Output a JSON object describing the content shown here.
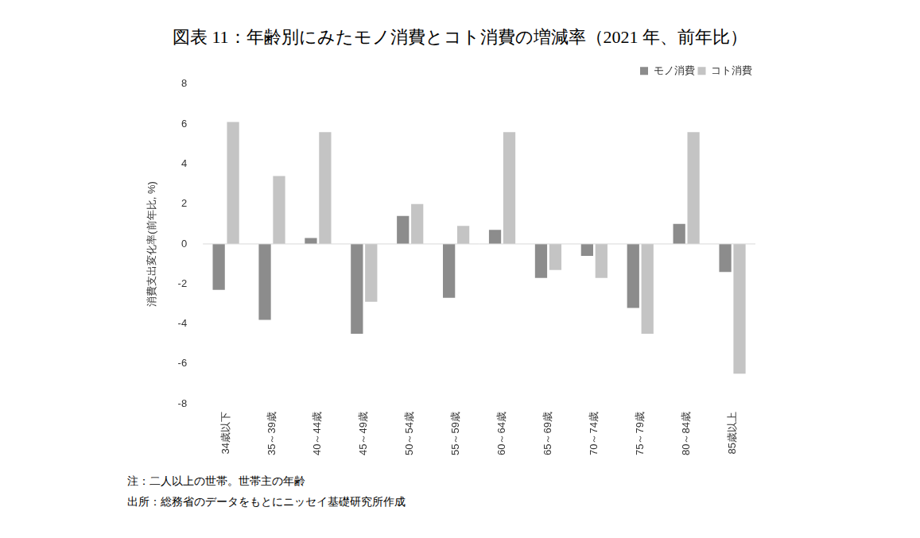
{
  "chart_data": {
    "type": "bar",
    "title": "図表 11：年齢別にみたモノ消費とコト消費の増減率（2021 年、前年比）",
    "y_label": "消費支出変化率(前年比, %)",
    "categories": [
      "34歳以下",
      "35～39歳",
      "40～44歳",
      "45～49歳",
      "50～54歳",
      "55～59歳",
      "60～64歳",
      "65～69歳",
      "70～74歳",
      "75～79歳",
      "80～84歳",
      "85歳以上"
    ],
    "series": [
      {
        "name": "モノ消費",
        "color": "#8c8c8c",
        "values": [
          -2.3,
          -3.8,
          0.3,
          -4.5,
          1.4,
          -2.7,
          0.7,
          -1.7,
          -0.6,
          -3.2,
          1.0,
          -1.4
        ]
      },
      {
        "name": "コト消費",
        "color": "#c4c4c4",
        "values": [
          6.1,
          3.4,
          5.6,
          -2.9,
          2.0,
          0.9,
          5.6,
          -1.3,
          -1.7,
          -4.5,
          5.6,
          -6.5
        ]
      }
    ],
    "ylim": [
      -8,
      8
    ],
    "yticks": [
      -8,
      -6,
      -4,
      -2,
      0,
      2,
      4,
      6,
      8
    ],
    "grid": false,
    "legend": "top-right",
    "notes": [
      "注：二人以上の世帯。世帯主の年齢",
      "出所：総務省のデータをもとにニッセイ基礎研究所作成"
    ]
  }
}
